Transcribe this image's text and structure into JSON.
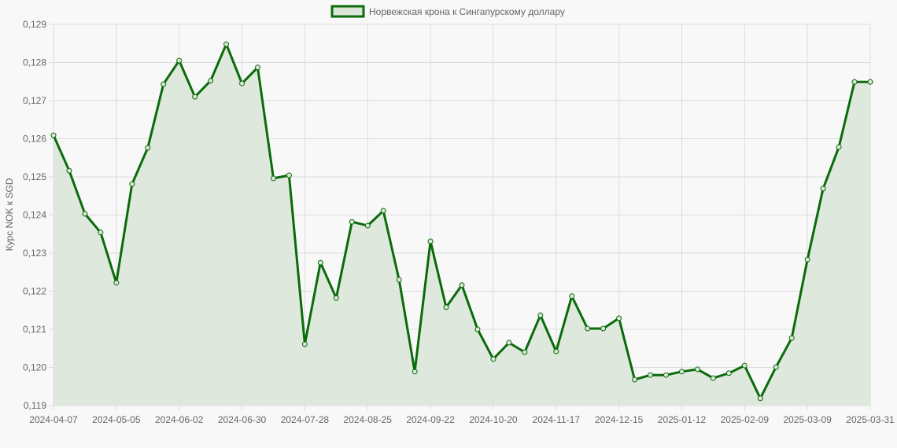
{
  "chart_data": {
    "type": "line",
    "legend": {
      "label": "Норвежская крона к Сингапурскому доллару",
      "position": "top"
    },
    "ylabel": "Курс NOK к SGD",
    "xlabel": "",
    "ylim": [
      0.119,
      0.129
    ],
    "yticks": [
      "0,119",
      "0,120",
      "0,121",
      "0,122",
      "0,123",
      "0,124",
      "0,125",
      "0,126",
      "0,127",
      "0,128",
      "0,129"
    ],
    "xticks": [
      "2024-04-07",
      "2024-05-05",
      "2024-06-02",
      "2024-06-30",
      "2024-07-28",
      "2024-08-25",
      "2024-09-22",
      "2024-10-20",
      "2024-11-17",
      "2024-12-15",
      "2025-01-12",
      "2025-02-09",
      "2025-03-09",
      "2025-03-31"
    ],
    "grid": true,
    "colors": {
      "line": "#0a6b0a",
      "fill": "#dbe6d9",
      "grid": "#dcdcdc"
    },
    "categories": [
      "2024-04-07",
      "2024-04-14",
      "2024-04-21",
      "2024-04-28",
      "2024-05-05",
      "2024-05-12",
      "2024-05-19",
      "2024-05-26",
      "2024-06-02",
      "2024-06-09",
      "2024-06-16",
      "2024-06-23",
      "2024-06-30",
      "2024-07-07",
      "2024-07-14",
      "2024-07-21",
      "2024-07-28",
      "2024-08-04",
      "2024-08-11",
      "2024-08-18",
      "2024-08-25",
      "2024-09-01",
      "2024-09-08",
      "2024-09-15",
      "2024-09-22",
      "2024-09-29",
      "2024-10-06",
      "2024-10-13",
      "2024-10-20",
      "2024-10-27",
      "2024-11-03",
      "2024-11-10",
      "2024-11-17",
      "2024-11-24",
      "2024-12-01",
      "2024-12-08",
      "2024-12-15",
      "2024-12-22",
      "2024-12-29",
      "2025-01-05",
      "2025-01-12",
      "2025-01-19",
      "2025-01-26",
      "2025-02-02",
      "2025-02-09",
      "2025-02-16",
      "2025-02-23",
      "2025-03-02",
      "2025-03-09",
      "2025-03-16",
      "2025-03-23",
      "2025-03-30",
      "2025-03-31"
    ],
    "series": [
      {
        "name": "Норвежская крона к Сингапурскому доллару",
        "values": [
          0.12609,
          0.12516,
          0.12403,
          0.12354,
          0.12222,
          0.12481,
          0.12576,
          0.12743,
          0.12805,
          0.1271,
          0.12752,
          0.12848,
          0.12745,
          0.12787,
          0.12496,
          0.12504,
          0.12061,
          0.12275,
          0.12182,
          0.12382,
          0.12372,
          0.12411,
          0.1223,
          0.11989,
          0.12331,
          0.12158,
          0.12216,
          0.121,
          0.12022,
          0.12065,
          0.1204,
          0.12137,
          0.12042,
          0.12187,
          0.12102,
          0.12102,
          0.12129,
          0.11968,
          0.1198,
          0.1198,
          0.11989,
          0.11995,
          0.11972,
          0.11985,
          0.12005,
          0.11919,
          0.12001,
          0.12077,
          0.12283,
          0.12469,
          0.12578,
          0.12749,
          0.12749
        ]
      }
    ]
  }
}
